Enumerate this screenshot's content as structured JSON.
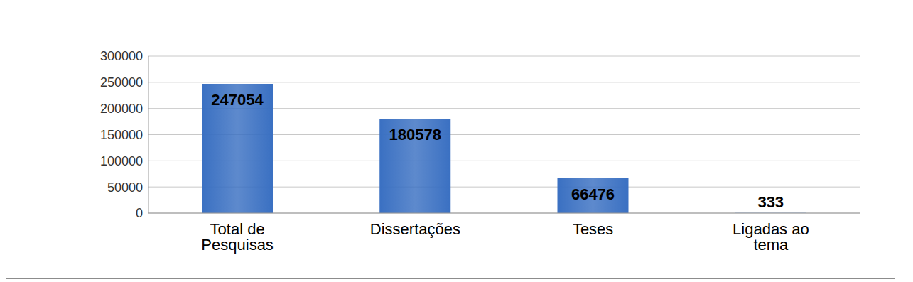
{
  "chart_data": {
    "type": "bar",
    "categories": [
      "Total de\nPesquisas",
      "Dissertações",
      "Teses",
      "Ligadas ao\ntema"
    ],
    "values": [
      247054,
      180578,
      66476,
      333
    ],
    "color": "#3a70c2",
    "ylim": [
      0,
      300000
    ],
    "yticks": [
      0,
      50000,
      100000,
      150000,
      200000,
      250000,
      300000
    ],
    "grid": true,
    "data_labels": true
  }
}
